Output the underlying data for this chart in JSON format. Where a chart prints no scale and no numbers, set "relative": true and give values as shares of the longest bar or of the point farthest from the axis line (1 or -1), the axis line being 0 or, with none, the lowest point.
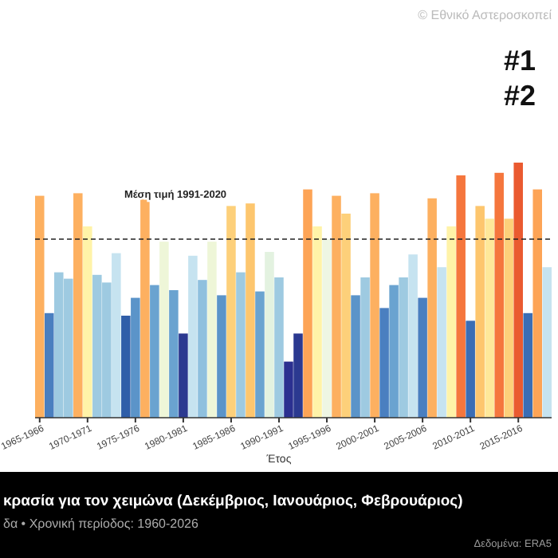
{
  "chart_data": {
    "type": "bar",
    "relative": true,
    "title": "κρασία για τον χειμώνα (Δεκέμβριος, Ιανουάριος, Φεβρουάριος)",
    "subtitle": "δα • Χρονική περίοδος: 1960-2026",
    "xlabel": "Έτος",
    "categories": [
      "1965-1966",
      null,
      null,
      null,
      null,
      "1970-1971",
      null,
      null,
      null,
      null,
      "1975-1976",
      null,
      null,
      null,
      null,
      "1980-1981",
      null,
      null,
      null,
      null,
      "1985-1986",
      null,
      null,
      null,
      null,
      "1990-1991",
      null,
      null,
      null,
      null,
      "1995-1996",
      null,
      null,
      null,
      null,
      "2000-2001",
      null,
      null,
      null,
      null,
      "2005-2006",
      null,
      null,
      null,
      null,
      "2010-2011",
      null,
      null,
      null,
      null,
      "2015-2016",
      null,
      null,
      null
    ],
    "values": [
      0.87,
      0.41,
      0.57,
      0.545,
      0.88,
      0.75,
      0.56,
      0.53,
      0.645,
      0.4,
      0.47,
      0.88,
      0.52,
      0.69,
      0.5,
      0.33,
      0.635,
      0.54,
      0.69,
      0.48,
      0.83,
      0.57,
      0.84,
      0.495,
      0.65,
      0.55,
      0.22,
      0.33,
      0.895,
      0.75,
      0.7,
      0.87,
      0.8,
      0.48,
      0.55,
      0.88,
      0.43,
      0.52,
      0.55,
      0.64,
      0.47,
      0.86,
      0.59,
      0.75,
      0.95,
      0.38,
      0.83,
      0.78,
      0.96,
      0.78,
      1,
      0.41,
      0.895,
      0.59
    ],
    "colors": [
      "#fdb060",
      "#4a7fc0",
      "#9ecae1",
      "#9ecae1",
      "#fdb060",
      "#fff3a8",
      "#9ecae1",
      "#9ecae1",
      "#c6e3f0",
      "#2f5ea8",
      "#5b94c9",
      "#fdb060",
      "#6aa3d0",
      "#eef6d8",
      "#6aa3d0",
      "#2b3990",
      "#c6e3f0",
      "#8fc0de",
      "#eef6d8",
      "#5b94c9",
      "#fdd07a",
      "#9ecae1",
      "#fdc66e",
      "#6aa3d0",
      "#e3f2e0",
      "#9ecae1",
      "#2b3090",
      "#2b3990",
      "#fda456",
      "#fff3a8",
      "#eef6e4",
      "#fdb060",
      "#fdd07a",
      "#5b94c9",
      "#9ecae1",
      "#fdb060",
      "#4a7fc0",
      "#6aa3d0",
      "#9ecae1",
      "#c6e3f0",
      "#4a7fc0",
      "#fdb060",
      "#c6e3f0",
      "#fff3a8",
      "#f5763d",
      "#3a6db5",
      "#fdc66e",
      "#fee89a",
      "#f5763d",
      "#fdd07a",
      "#ea5a30",
      "#3a6db5",
      "#fda456",
      "#c6e3f0"
    ],
    "ref_lines": [
      {
        "axis": "y",
        "value": 0.7,
        "label": "Μέση τιμή 1991-2020",
        "line_style": "dashed"
      }
    ],
    "annotations": [
      "#1",
      "#2",
      "Δεδομένα: ERA5",
      "© Εθνικό Αστεροσκοπεί"
    ]
  }
}
